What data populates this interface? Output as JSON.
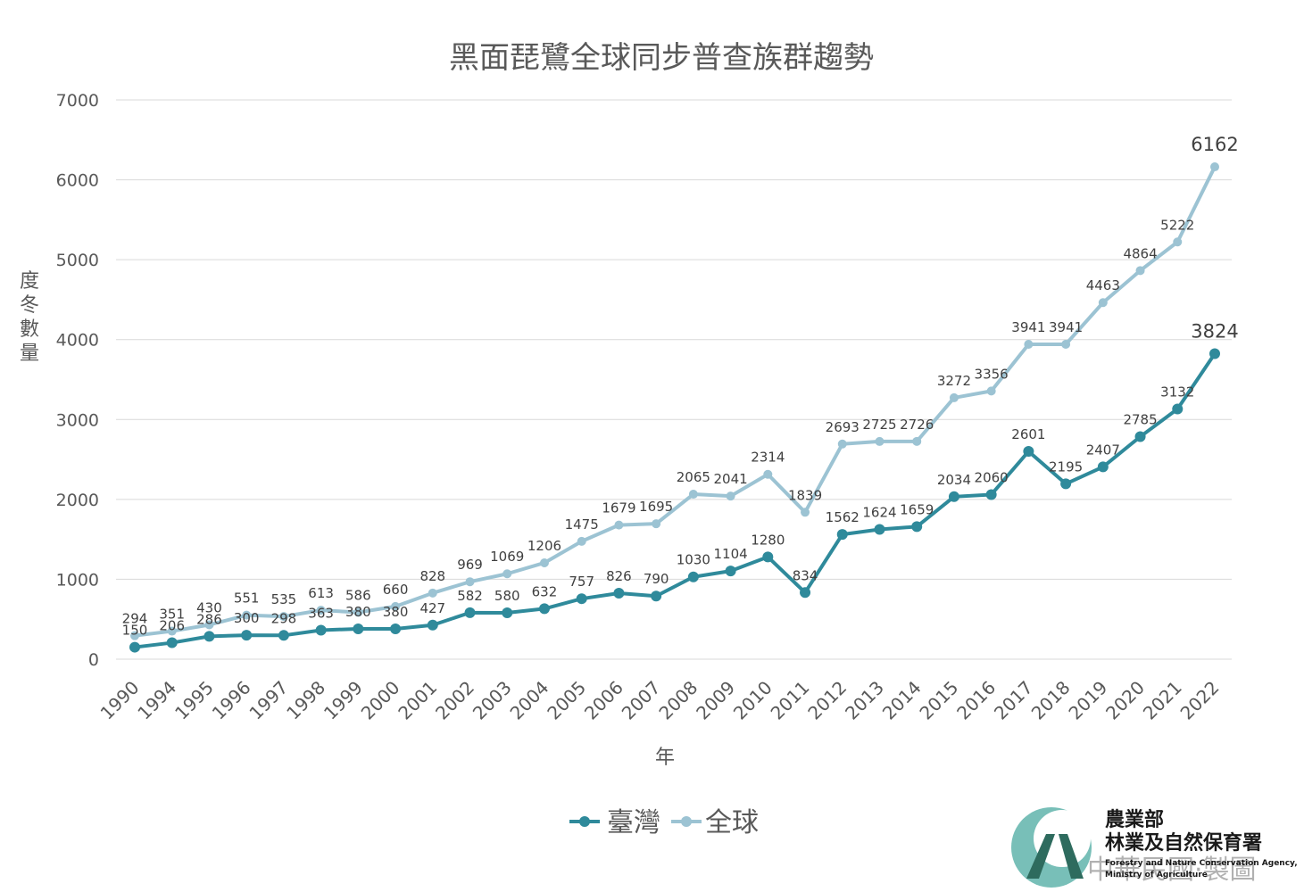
{
  "chart_data": {
    "type": "line",
    "title": "黑面琵鷺全球同步普查族群趨勢",
    "xlabel": "年",
    "ylabel": "度冬數量",
    "ylim": [
      0,
      7000
    ],
    "yticks": [
      0,
      1000,
      2000,
      3000,
      4000,
      5000,
      6000,
      7000
    ],
    "grid": true,
    "legend_position": "bottom",
    "categories": [
      "1990",
      "1994",
      "1995",
      "1996",
      "1997",
      "1998",
      "1999",
      "2000",
      "2001",
      "2002",
      "2003",
      "2004",
      "2005",
      "2006",
      "2007",
      "2008",
      "2009",
      "2010",
      "2011",
      "2012",
      "2013",
      "2014",
      "2015",
      "2016",
      "2017",
      "2018",
      "2019",
      "2020",
      "2021",
      "2022"
    ],
    "series": [
      {
        "name": "臺灣",
        "color": "#2f8a9b",
        "values": [
          150,
          206,
          286,
          300,
          298,
          363,
          380,
          380,
          427,
          582,
          580,
          632,
          757,
          826,
          790,
          1030,
          1104,
          1280,
          834,
          1562,
          1624,
          1659,
          2034,
          2060,
          2601,
          2195,
          2407,
          2785,
          3132,
          3824
        ]
      },
      {
        "name": "全球",
        "color": "#9cc3d3",
        "values": [
          294,
          351,
          430,
          551,
          535,
          613,
          586,
          660,
          828,
          969,
          1069,
          1206,
          1475,
          1679,
          1695,
          2065,
          2041,
          2314,
          1839,
          2693,
          2725,
          2726,
          3272,
          3356,
          3941,
          3941,
          4463,
          4864,
          5222,
          6162
        ]
      }
    ]
  },
  "logo": {
    "line1": "農業部",
    "line2": "林業及自然保育署",
    "line3": "Forestry and Nature Conservation Agency,",
    "line4": "Ministry of Agriculture",
    "colors": [
      "#78bfb8",
      "#2e6b5e"
    ]
  },
  "watermark": "中華民國·製圖"
}
